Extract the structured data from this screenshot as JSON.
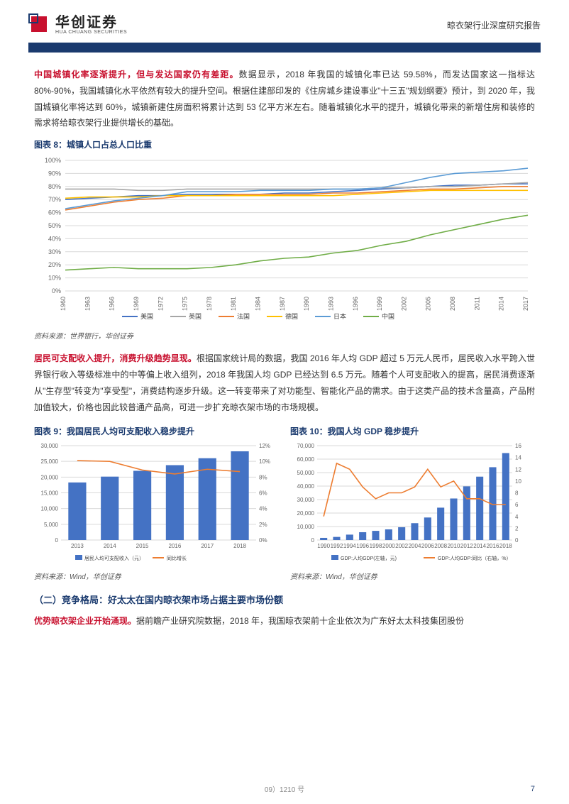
{
  "header": {
    "logo_cn": "华创证券",
    "logo_en": "HUA CHUANG SECURITIES",
    "report_title": "晾衣架行业深度研究报告"
  },
  "para1": {
    "lead": "中国城镇化率逐渐提升，但与发达国家仍有差距。",
    "body": "数据显示，2018 年我国的城镇化率已达 59.58%，而发达国家这一指标达 80%-90%，我国城镇化水平依然有较大的提升空间。根据住建部印发的《住房城乡建设事业\"十三五\"规划纲要》预计，到 2020 年，我国城镇化率将达到 60%，城镇新建住房面积将累计达到 53 亿平方米左右。随着城镇化水平的提升，城镇化带来的新增住房和装修的需求将给晾衣架行业提供增长的基础。"
  },
  "chart8": {
    "title": "图表 8：城镇人口占总人口比重",
    "type": "line",
    "background_color": "#ffffff",
    "grid_color": "#d9d9d9",
    "label_fontsize": 9,
    "x_categories": [
      "1960",
      "1963",
      "1966",
      "1969",
      "1972",
      "1975",
      "1978",
      "1981",
      "1984",
      "1987",
      "1990",
      "1993",
      "1996",
      "1999",
      "2002",
      "2005",
      "2008",
      "2011",
      "2014",
      "2017"
    ],
    "ylim": [
      0,
      100
    ],
    "ytick_step": 10,
    "ytick_suffix": "%",
    "line_width": 1.6,
    "series": [
      {
        "name": "美国",
        "color": "#4472c4",
        "values": [
          70,
          71,
          72,
          73,
          73,
          74,
          74,
          74,
          74,
          75,
          75,
          76,
          77,
          78,
          79,
          80,
          81,
          81,
          82,
          82
        ]
      },
      {
        "name": "英国",
        "color": "#a6a6a6",
        "values": [
          78,
          78,
          78,
          77,
          77,
          78,
          78,
          78,
          78,
          78,
          78,
          78,
          78,
          79,
          79,
          80,
          80,
          81,
          82,
          83
        ]
      },
      {
        "name": "法国",
        "color": "#ed7d31",
        "values": [
          62,
          65,
          68,
          70,
          71,
          73,
          73,
          74,
          74,
          74,
          74,
          75,
          75,
          76,
          77,
          78,
          78,
          79,
          80,
          80
        ]
      },
      {
        "name": "德国",
        "color": "#ffc000",
        "values": [
          71,
          72,
          72,
          72,
          73,
          73,
          73,
          73,
          73,
          73,
          73,
          73,
          74,
          75,
          76,
          77,
          77,
          77,
          77,
          77
        ]
      },
      {
        "name": "日本",
        "color": "#5b9bd5",
        "values": [
          63,
          66,
          69,
          71,
          73,
          76,
          76,
          76,
          77,
          77,
          77,
          78,
          78,
          79,
          83,
          87,
          90,
          91,
          92,
          94
        ]
      },
      {
        "name": "中国",
        "color": "#70ad47",
        "values": [
          16,
          17,
          18,
          17,
          17,
          17,
          18,
          20,
          23,
          25,
          26,
          29,
          31,
          35,
          38,
          43,
          47,
          51,
          55,
          58
        ]
      }
    ],
    "source": "资料来源：世界银行，华创证券"
  },
  "para2": {
    "lead": "居民可支配收入提升，消费升级趋势显现。",
    "body": "根据国家统计局的数据，我国 2016 年人均 GDP 超过 5 万元人民币，居民收入水平跨入世界银行收入等级标准中的中等偏上收入组列，2018 年我国人均 GDP 已经达到 6.5 万元。随着个人可支配收入的提高，居民消费逐渐从\"生存型\"转变为\"享受型\"，消费结构逐步升级。这一转变带来了对功能型、智能化产品的需求。由于这类产品的技术含量高，产品附加值较大，价格也因此较普通产品高，可进一步扩充晾衣架市场的市场规模。"
  },
  "chart9": {
    "title": "图表 9：我国居民人均可支配收入稳步提升",
    "type": "bar+line",
    "background_color": "#ffffff",
    "grid_color": "#d9d9d9",
    "label_fontsize": 8,
    "x_categories": [
      "2013",
      "2014",
      "2015",
      "2016",
      "2017",
      "2018"
    ],
    "y_left": {
      "lim": [
        0,
        30000
      ],
      "step": 5000
    },
    "y_right": {
      "lim": [
        0,
        12
      ],
      "step": 2,
      "suffix": "%"
    },
    "bar": {
      "name": "居民人均可支配收入（元）",
      "color": "#4472c4",
      "values": [
        18300,
        20150,
        22000,
        23800,
        26000,
        28200
      ],
      "width": 0.55
    },
    "line": {
      "name": "同比增长",
      "color": "#ed7d31",
      "values": [
        10.1,
        10.0,
        8.9,
        8.4,
        9.0,
        8.7
      ],
      "width": 1.6
    },
    "source": "资料来源：Wind，华创证券"
  },
  "chart10": {
    "title": "图表 10：我国人均 GDP 稳步提升",
    "type": "bar+line",
    "background_color": "#ffffff",
    "grid_color": "#d9d9d9",
    "label_fontsize": 8,
    "x_categories": [
      "1990",
      "1992",
      "1994",
      "1996",
      "1998",
      "2000",
      "2002",
      "2004",
      "2006",
      "2008",
      "2010",
      "2012",
      "2014",
      "2016",
      "2018"
    ],
    "y_left": {
      "lim": [
        0,
        70000
      ],
      "step": 10000
    },
    "y_right": {
      "lim": [
        0,
        16
      ],
      "step": 2,
      "suffix": ""
    },
    "bar": {
      "name": "GDP:人均GDP(左轴，元)",
      "color": "#4472c4",
      "values": [
        1600,
        2300,
        4000,
        5800,
        6800,
        7900,
        9500,
        12500,
        16700,
        24000,
        30800,
        39800,
        47000,
        54000,
        64500
      ],
      "width": 0.55
    },
    "line": {
      "name": "GDP:人均GDP:同比（右轴，%）",
      "color": "#ed7d31",
      "values": [
        4,
        13,
        12,
        9,
        7,
        8,
        8,
        9,
        12,
        9,
        10,
        7,
        7,
        6,
        6
      ],
      "width": 1.6
    },
    "source": "资料来源：Wind，华创证券"
  },
  "section2_h": "（二）竞争格局：好太太在国内晾衣架市场占据主要市场份额",
  "para3": {
    "lead": "优势晾衣架企业开始涌现。",
    "body": "据前瞻产业研究院数据，2018 年，我国晾衣架前十企业依次为广东好太太科技集团股份"
  },
  "footer": {
    "code": "09）1210 号",
    "page": "7"
  }
}
